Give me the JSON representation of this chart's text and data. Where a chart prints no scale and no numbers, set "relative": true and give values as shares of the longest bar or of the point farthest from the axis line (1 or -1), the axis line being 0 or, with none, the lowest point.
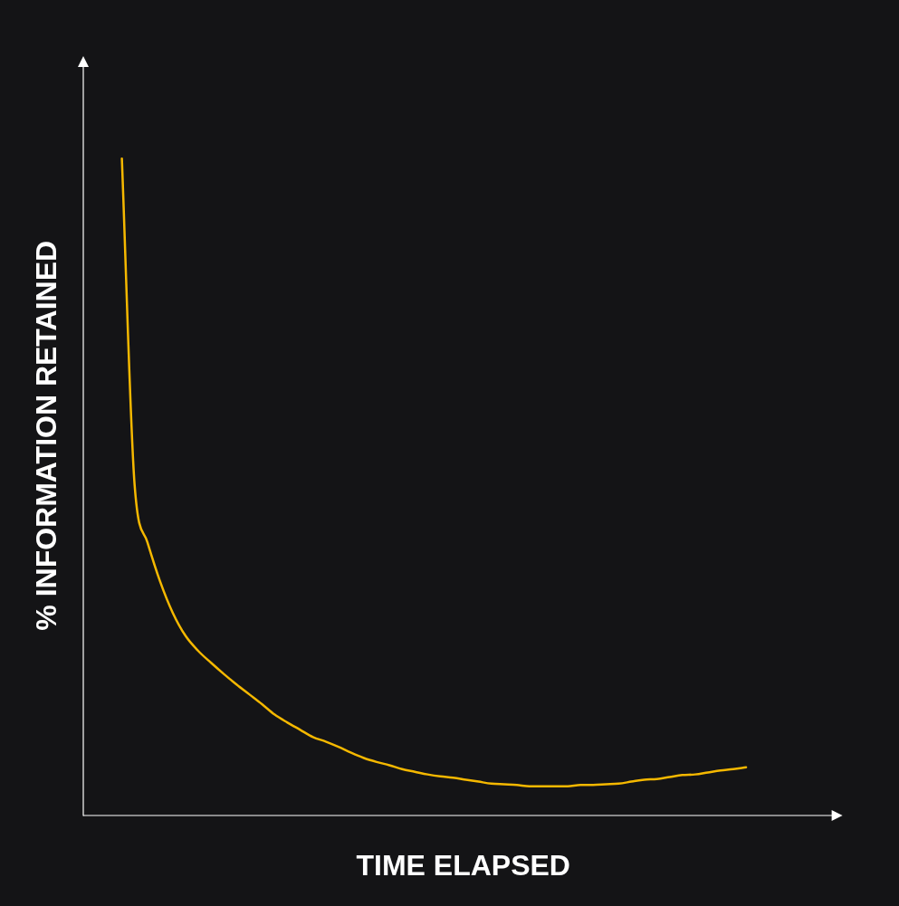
{
  "chart_data": {
    "type": "line",
    "relative": true,
    "xlabel": "TIME ELAPSED",
    "ylabel": "% INFORMATION RETAINED",
    "categories": [
      null,
      null,
      null,
      null,
      null,
      null,
      null,
      null,
      null,
      null,
      null,
      null,
      null,
      null,
      null,
      null,
      null,
      null,
      null,
      null,
      null,
      null,
      null,
      null,
      null,
      null,
      null,
      null,
      null,
      null,
      null,
      null,
      null,
      null,
      null,
      null,
      null,
      null,
      null,
      null,
      null,
      null,
      null,
      null,
      null,
      null,
      null,
      null,
      null,
      null
    ],
    "series": [
      {
        "color": "#f5b800",
        "values": [
          1,
          0.503,
          0.416,
          0.356,
          0.308,
          0.273,
          0.25,
          0.232,
          0.215,
          0.199,
          0.184,
          0.169,
          0.153,
          0.141,
          0.13,
          0.119,
          0.112,
          0.104,
          0.095,
          0.087,
          0.081,
          0.076,
          0.07,
          0.066,
          0.062,
          0.059,
          0.057,
          0.054,
          0.051,
          0.048,
          0.047,
          0.046,
          0.044,
          0.044,
          0.044,
          0.044,
          0.046,
          0.046,
          0.047,
          0.048,
          0.051,
          0.054,
          0.055,
          0.058,
          0.061,
          0.062,
          0.065,
          0.068,
          0.07,
          0.073
        ]
      }
    ],
    "legend": false,
    "marker": "none",
    "line_style": "solid"
  }
}
